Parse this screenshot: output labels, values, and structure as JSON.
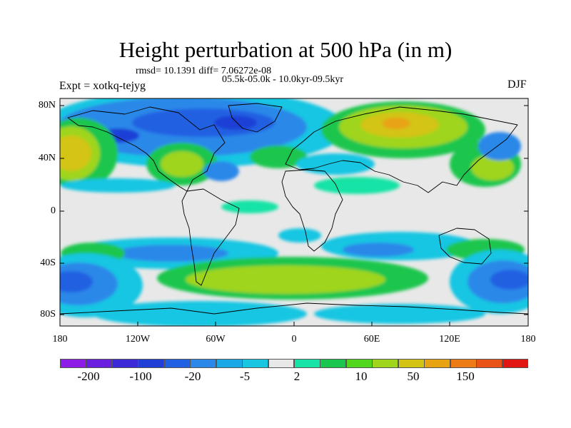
{
  "title": "Height perturbation at 500 hPa (in m)",
  "stats": "rmsd= 10.1391 diff= 7.06272e-08",
  "period": "05.5k-05.0k - 10.0kyr-09.5kyr",
  "experiment": "Expt = xotkq-tejyg",
  "season": "DJF",
  "lat_labels": [
    "80N",
    "40N",
    "0",
    "40S",
    "80S"
  ],
  "lon_labels": [
    "180",
    "120W",
    "60W",
    "0",
    "60E",
    "120E",
    "180"
  ],
  "colorbar": {
    "colors": [
      "#8c1ce6",
      "#6a1fe0",
      "#3c2ad8",
      "#1f3fd6",
      "#2060e2",
      "#2b88e9",
      "#1aa9e6",
      "#18c6e2",
      "#e8e8e8",
      "#17e3a6",
      "#1ac64e",
      "#52d61e",
      "#9fd51c",
      "#d3c414",
      "#e8a313",
      "#ec7b16",
      "#ea5317",
      "#e21612"
    ],
    "labels": [
      "-200",
      "-100",
      "-20",
      "-5",
      "2",
      "10",
      "50",
      "150"
    ]
  },
  "map": {
    "background": "#e8e8e8",
    "coastline_color": "#000000"
  }
}
